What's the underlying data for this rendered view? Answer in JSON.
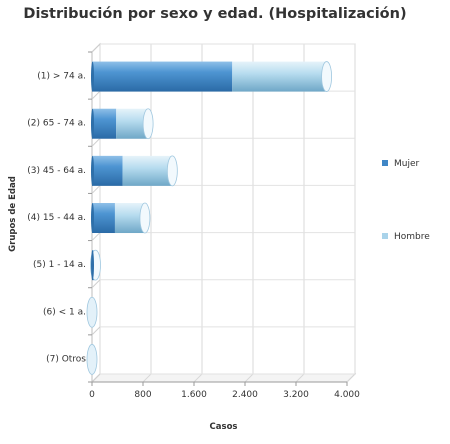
{
  "chart_data": {
    "type": "bar",
    "orientation": "horizontal",
    "stacked": true,
    "style": "3d-cylinder",
    "title": "Distribución por sexo y edad. (Hospitalización)",
    "xlabel": "Casos",
    "ylabel": "Grupos de Edad",
    "categories": [
      "(1) > 74 a.",
      "(2) 65 - 74 a.",
      "(3) 45 - 64 a.",
      "(4) 15 - 44 a.",
      "(5) 1 - 14 a.",
      "(6) < 1 a.",
      "(7) Otros"
    ],
    "series": [
      {
        "name": "Mujer",
        "values": [
          2200,
          380,
          480,
          360,
          30,
          0,
          0
        ],
        "color": "#3f86c6"
      },
      {
        "name": "Hombre",
        "values": [
          1480,
          500,
          780,
          470,
          25,
          0,
          0
        ],
        "color": "#a9d3ea"
      }
    ],
    "xlim": [
      0,
      4000
    ],
    "xticks": [
      0,
      800,
      1600,
      2400,
      3200,
      4000
    ],
    "xtick_labels": [
      "0",
      "800",
      "1.600",
      "2.400",
      "3.200",
      "4.000"
    ],
    "grid": true,
    "legend_position": "right"
  }
}
